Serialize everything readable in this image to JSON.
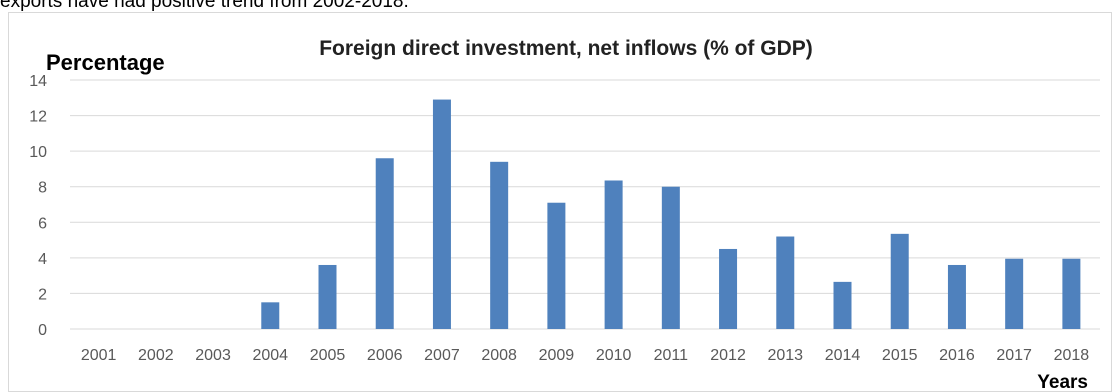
{
  "context_text": "exports have had positive trend from 2002-2018.",
  "chart_data": {
    "type": "bar",
    "title": "Foreign direct investment, net inflows (% of GDP)",
    "ylabel": "Percentage",
    "xlabel": "Years",
    "categories": [
      "2001",
      "2002",
      "2003",
      "2004",
      "2005",
      "2006",
      "2007",
      "2008",
      "2009",
      "2010",
      "2011",
      "2012",
      "2013",
      "2014",
      "2015",
      "2016",
      "2017",
      "2018"
    ],
    "values": [
      0,
      0,
      0,
      1.5,
      3.6,
      9.6,
      12.9,
      9.4,
      7.1,
      8.35,
      8.0,
      4.5,
      5.2,
      2.65,
      5.35,
      3.6,
      3.95,
      3.95
    ],
    "ylim": [
      0,
      14
    ],
    "yticks": [
      0,
      2,
      4,
      6,
      8,
      10,
      12,
      14
    ],
    "grid": true,
    "legend": "none",
    "bar_color": "#4f81bd",
    "grid_color": "#d9d9d9"
  }
}
